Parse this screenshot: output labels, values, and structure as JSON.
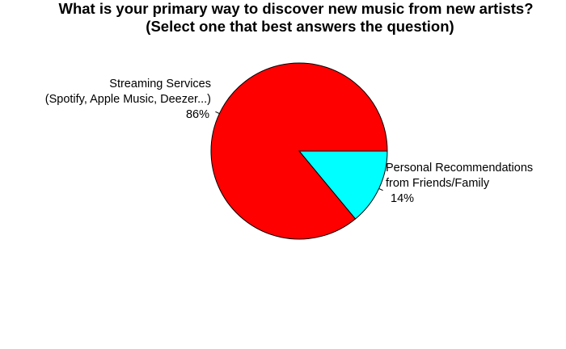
{
  "chart_data": {
    "type": "pie",
    "title": "What is your primary way to discover new music from new artists?",
    "subtitle": "(Select one that best answers the question)",
    "direction": "clockwise",
    "start_angle_deg": 0,
    "slices": [
      {
        "label_lines": [
          "Personal Recommendations",
          "from Friends/Family"
        ],
        "percent_label": "14%",
        "value": 14,
        "color": "#00ffff"
      },
      {
        "label_lines": [
          "Streaming Services",
          "(Spotify, Apple Music, Deezer...)"
        ],
        "percent_label": "86%",
        "value": 86,
        "color": "#ff0000"
      }
    ]
  }
}
